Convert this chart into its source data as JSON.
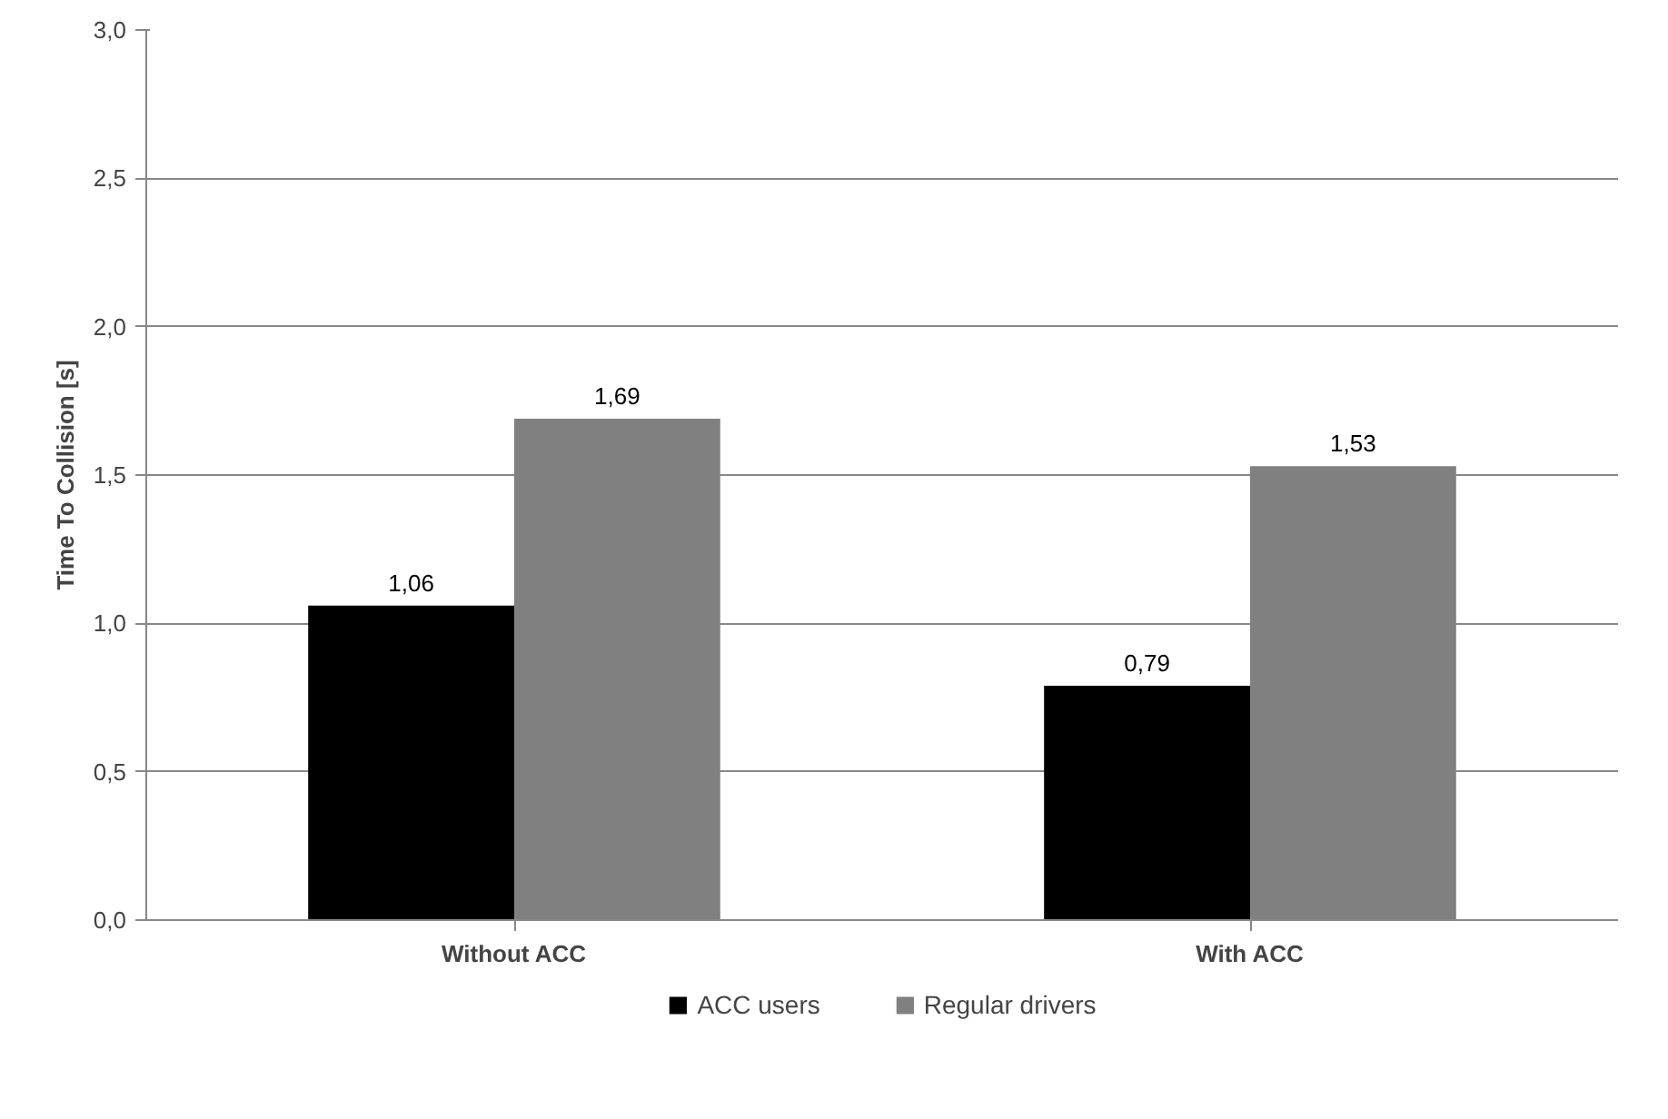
{
  "chart_data": {
    "type": "bar",
    "ylabel": "Time To Collision [s]",
    "categories": [
      "Without ACC",
      "With ACC"
    ],
    "series": [
      {
        "name": "ACC users",
        "color": "#000000",
        "values": [
          1.06,
          0.79
        ],
        "value_labels": [
          "1,06",
          "0,79"
        ]
      },
      {
        "name": "Regular drivers",
        "color": "#808080",
        "values": [
          1.69,
          1.53
        ],
        "value_labels": [
          "1,69",
          "1,53"
        ]
      }
    ],
    "ylim": [
      0,
      3
    ],
    "yticks": [
      {
        "value": 0,
        "label": "0,0"
      },
      {
        "value": 0.5,
        "label": "0,5"
      },
      {
        "value": 1,
        "label": "1,0"
      },
      {
        "value": 1.5,
        "label": "1,5"
      },
      {
        "value": 2,
        "label": "2,0"
      },
      {
        "value": 2.5,
        "label": "2,5"
      },
      {
        "value": 3,
        "label": "3,0"
      }
    ],
    "grid": "y",
    "legend": "bottom"
  }
}
